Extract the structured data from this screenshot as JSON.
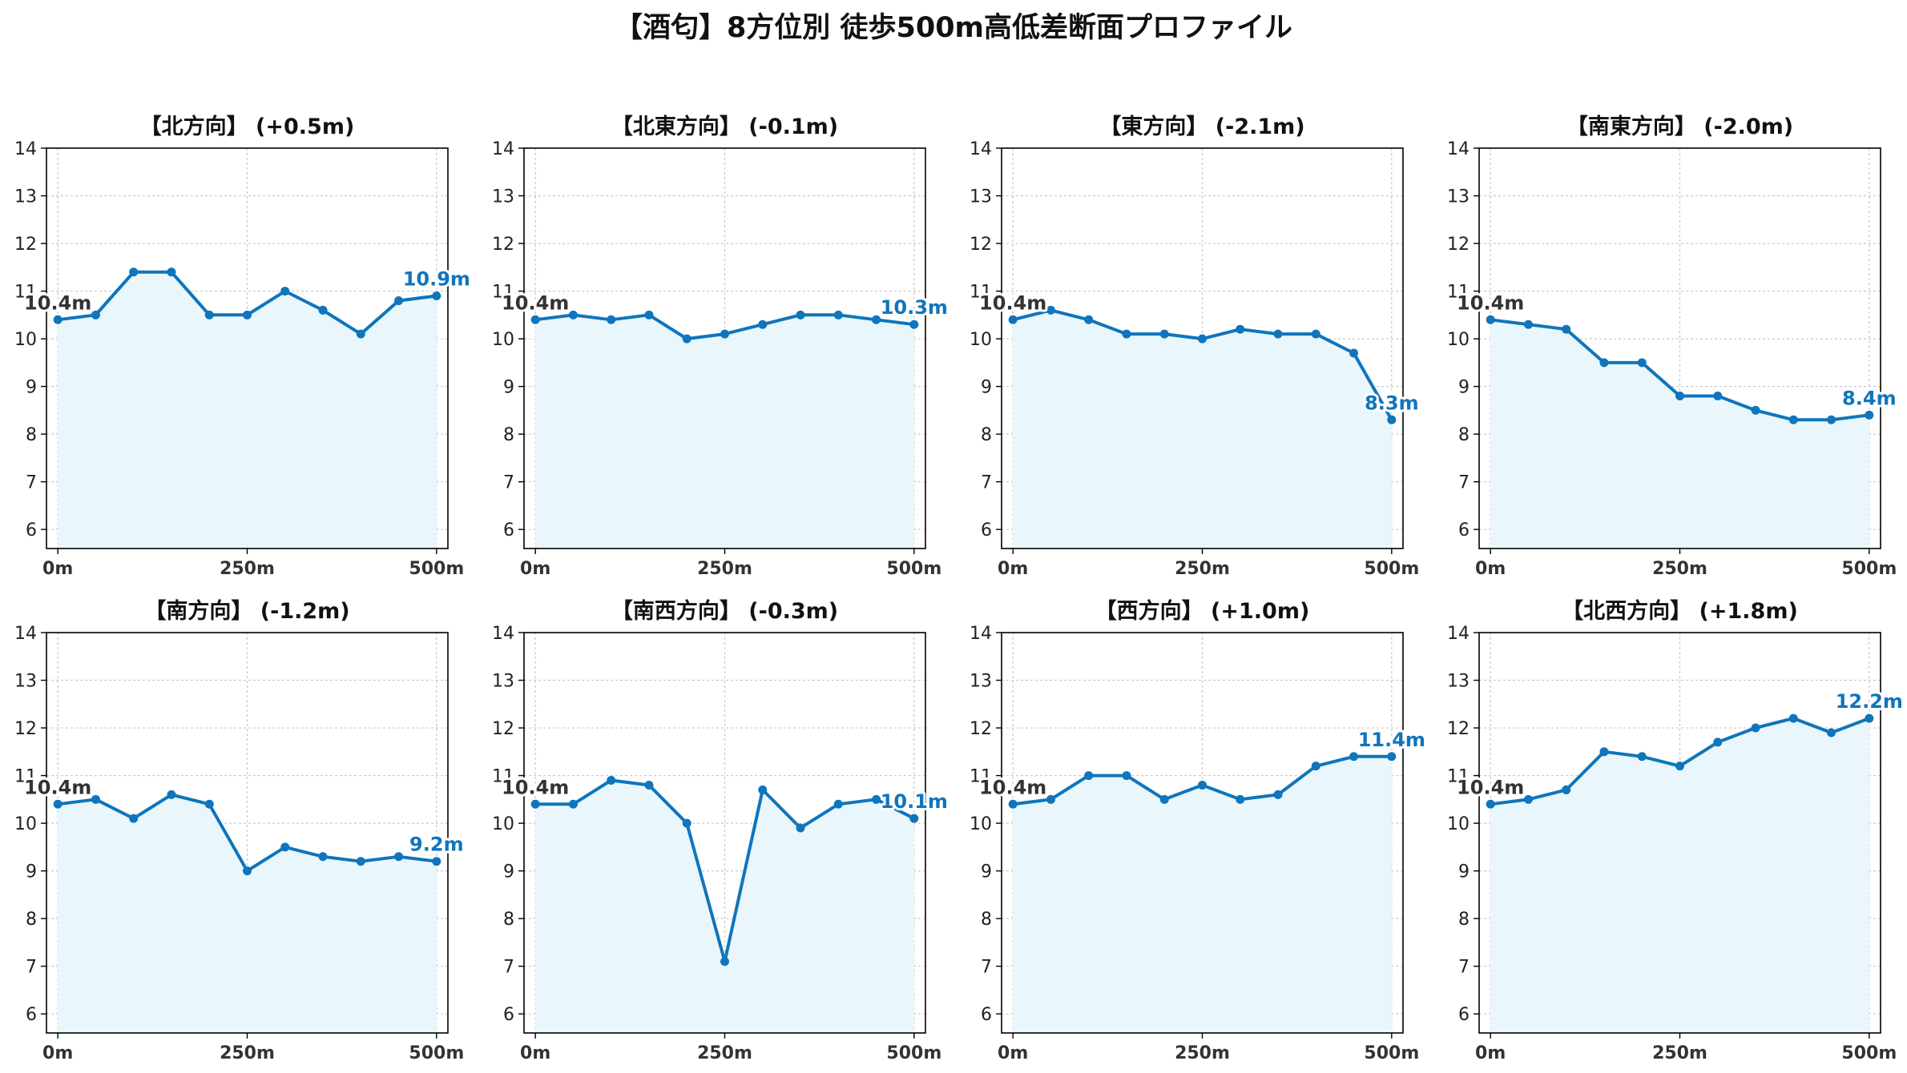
{
  "suptitle": "【酒匂】8方位別 徒歩500m高低差断面プロファイル",
  "style": {
    "line_color": "#0f75bc",
    "fill_color": "#e9f7fc",
    "grid_color": "#c8c8c8",
    "text_color": "#333333",
    "end_label_color": "#0f75bc"
  },
  "chart_data": [
    {
      "type": "line",
      "title": "【北方向】 (+0.5m)",
      "x": [
        0,
        50,
        100,
        150,
        200,
        250,
        300,
        350,
        400,
        450,
        500
      ],
      "y": [
        10.4,
        10.5,
        11.4,
        11.4,
        10.5,
        10.5,
        11.0,
        10.6,
        10.1,
        10.8,
        10.9
      ],
      "xticks": [
        0,
        250,
        500
      ],
      "xtick_labels": [
        "0m",
        "250m",
        "500m"
      ],
      "yticks": [
        6,
        7,
        8,
        9,
        10,
        11,
        12,
        13,
        14
      ],
      "ylim": [
        5.6,
        14.0
      ],
      "xlim": [
        -15,
        515
      ],
      "grid": true,
      "start_label": "10.4m",
      "end_label": "10.9m"
    },
    {
      "type": "line",
      "title": "【北東方向】 (-0.1m)",
      "x": [
        0,
        50,
        100,
        150,
        200,
        250,
        300,
        350,
        400,
        450,
        500
      ],
      "y": [
        10.4,
        10.5,
        10.4,
        10.5,
        10.0,
        10.1,
        10.3,
        10.5,
        10.5,
        10.4,
        10.3
      ],
      "xticks": [
        0,
        250,
        500
      ],
      "xtick_labels": [
        "0m",
        "250m",
        "500m"
      ],
      "yticks": [
        6,
        7,
        8,
        9,
        10,
        11,
        12,
        13,
        14
      ],
      "ylim": [
        5.6,
        14.0
      ],
      "xlim": [
        -15,
        515
      ],
      "grid": true,
      "start_label": "10.4m",
      "end_label": "10.3m"
    },
    {
      "type": "line",
      "title": "【東方向】 (-2.1m)",
      "x": [
        0,
        50,
        100,
        150,
        200,
        250,
        300,
        350,
        400,
        450,
        500
      ],
      "y": [
        10.4,
        10.6,
        10.4,
        10.1,
        10.1,
        10.0,
        10.2,
        10.1,
        10.1,
        9.7,
        8.3
      ],
      "xticks": [
        0,
        250,
        500
      ],
      "xtick_labels": [
        "0m",
        "250m",
        "500m"
      ],
      "yticks": [
        6,
        7,
        8,
        9,
        10,
        11,
        12,
        13,
        14
      ],
      "ylim": [
        5.6,
        14.0
      ],
      "xlim": [
        -15,
        515
      ],
      "grid": true,
      "start_label": "10.4m",
      "end_label": "8.3m"
    },
    {
      "type": "line",
      "title": "【南東方向】 (-2.0m)",
      "x": [
        0,
        50,
        100,
        150,
        200,
        250,
        300,
        350,
        400,
        450,
        500
      ],
      "y": [
        10.4,
        10.3,
        10.2,
        9.5,
        9.5,
        8.8,
        8.8,
        8.5,
        8.3,
        8.3,
        8.4
      ],
      "xticks": [
        0,
        250,
        500
      ],
      "xtick_labels": [
        "0m",
        "250m",
        "500m"
      ],
      "yticks": [
        6,
        7,
        8,
        9,
        10,
        11,
        12,
        13,
        14
      ],
      "ylim": [
        5.6,
        14.0
      ],
      "xlim": [
        -15,
        515
      ],
      "grid": true,
      "start_label": "10.4m",
      "end_label": "8.4m"
    },
    {
      "type": "line",
      "title": "【南方向】 (-1.2m)",
      "x": [
        0,
        50,
        100,
        150,
        200,
        250,
        300,
        350,
        400,
        450,
        500
      ],
      "y": [
        10.4,
        10.5,
        10.1,
        10.6,
        10.4,
        9.0,
        9.5,
        9.3,
        9.2,
        9.3,
        9.2
      ],
      "xticks": [
        0,
        250,
        500
      ],
      "xtick_labels": [
        "0m",
        "250m",
        "500m"
      ],
      "yticks": [
        6,
        7,
        8,
        9,
        10,
        11,
        12,
        13,
        14
      ],
      "ylim": [
        5.6,
        14.0
      ],
      "xlim": [
        -15,
        515
      ],
      "grid": true,
      "start_label": "10.4m",
      "end_label": "9.2m"
    },
    {
      "type": "line",
      "title": "【南西方向】 (-0.3m)",
      "x": [
        0,
        50,
        100,
        150,
        200,
        250,
        300,
        350,
        400,
        450,
        500
      ],
      "y": [
        10.4,
        10.4,
        10.9,
        10.8,
        10.0,
        7.1,
        10.7,
        9.9,
        10.4,
        10.5,
        10.1
      ],
      "xticks": [
        0,
        250,
        500
      ],
      "xtick_labels": [
        "0m",
        "250m",
        "500m"
      ],
      "yticks": [
        6,
        7,
        8,
        9,
        10,
        11,
        12,
        13,
        14
      ],
      "ylim": [
        5.6,
        14.0
      ],
      "xlim": [
        -15,
        515
      ],
      "grid": true,
      "start_label": "10.4m",
      "end_label": "10.1m"
    },
    {
      "type": "line",
      "title": "【西方向】 (+1.0m)",
      "x": [
        0,
        50,
        100,
        150,
        200,
        250,
        300,
        350,
        400,
        450,
        500
      ],
      "y": [
        10.4,
        10.5,
        11.0,
        11.0,
        10.5,
        10.8,
        10.5,
        10.6,
        11.2,
        11.4,
        11.4
      ],
      "xticks": [
        0,
        250,
        500
      ],
      "xtick_labels": [
        "0m",
        "250m",
        "500m"
      ],
      "yticks": [
        6,
        7,
        8,
        9,
        10,
        11,
        12,
        13,
        14
      ],
      "ylim": [
        5.6,
        14.0
      ],
      "xlim": [
        -15,
        515
      ],
      "grid": true,
      "start_label": "10.4m",
      "end_label": "11.4m"
    },
    {
      "type": "line",
      "title": "【北西方向】 (+1.8m)",
      "x": [
        0,
        50,
        100,
        150,
        200,
        250,
        300,
        350,
        400,
        450,
        500
      ],
      "y": [
        10.4,
        10.5,
        10.7,
        11.5,
        11.4,
        11.2,
        11.7,
        12.0,
        12.2,
        11.9,
        12.2
      ],
      "xticks": [
        0,
        250,
        500
      ],
      "xtick_labels": [
        "0m",
        "250m",
        "500m"
      ],
      "yticks": [
        6,
        7,
        8,
        9,
        10,
        11,
        12,
        13,
        14
      ],
      "ylim": [
        5.6,
        14.0
      ],
      "xlim": [
        -15,
        515
      ],
      "grid": true,
      "start_label": "10.4m",
      "end_label": "12.2m"
    }
  ]
}
